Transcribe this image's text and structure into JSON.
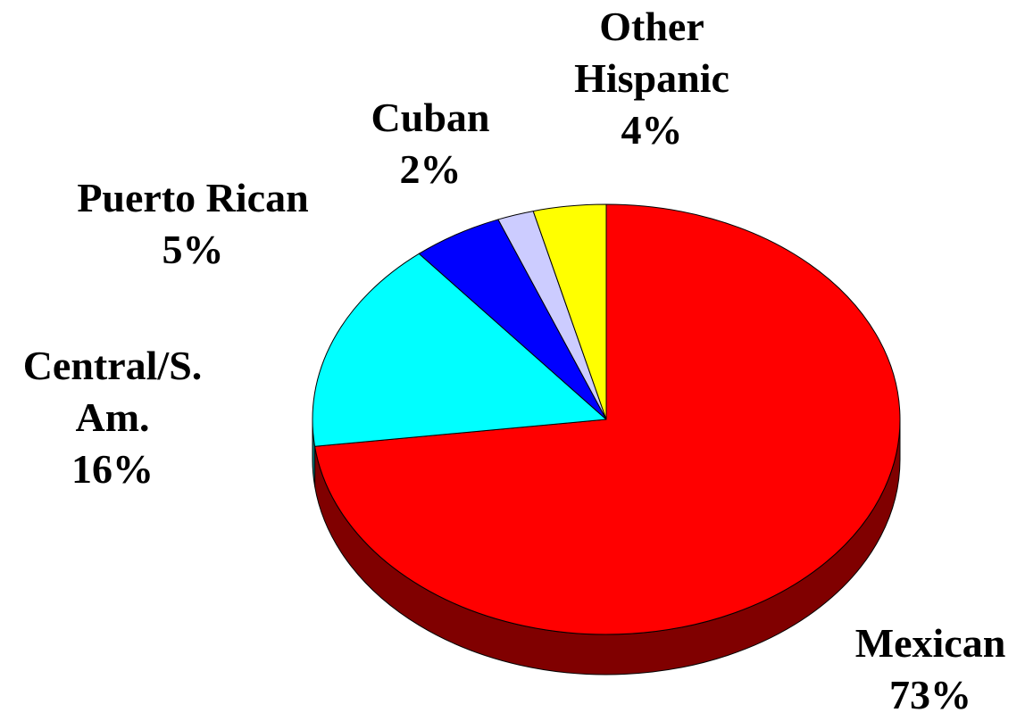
{
  "chart_data": {
    "type": "pie",
    "title": "",
    "slices": [
      {
        "label": "Mexican",
        "label_lines": [
          "Mexican"
        ],
        "percent_text": "73%",
        "value": 73,
        "color": "#ff0000",
        "side_color": "#800000"
      },
      {
        "label": "Central/S. Am.",
        "label_lines": [
          "Central/S.",
          "Am."
        ],
        "percent_text": "16%",
        "value": 16,
        "color": "#00ffff",
        "side_color": "#008080"
      },
      {
        "label": "Puerto Rican",
        "label_lines": [
          "Puerto Rican"
        ],
        "percent_text": "5%",
        "value": 5,
        "color": "#0000ff",
        "side_color": "#000080"
      },
      {
        "label": "Cuban",
        "label_lines": [
          "Cuban"
        ],
        "percent_text": "2%",
        "value": 2,
        "color": "#ccccff",
        "side_color": "#666680"
      },
      {
        "label": "Other Hispanic",
        "label_lines": [
          "Other",
          "Hispanic"
        ],
        "percent_text": "4%",
        "value": 4,
        "color": "#ffff00",
        "side_color": "#808000"
      }
    ],
    "start_slice": "Mexican",
    "direction": "clockwise",
    "three_d": true,
    "legend": "none"
  }
}
